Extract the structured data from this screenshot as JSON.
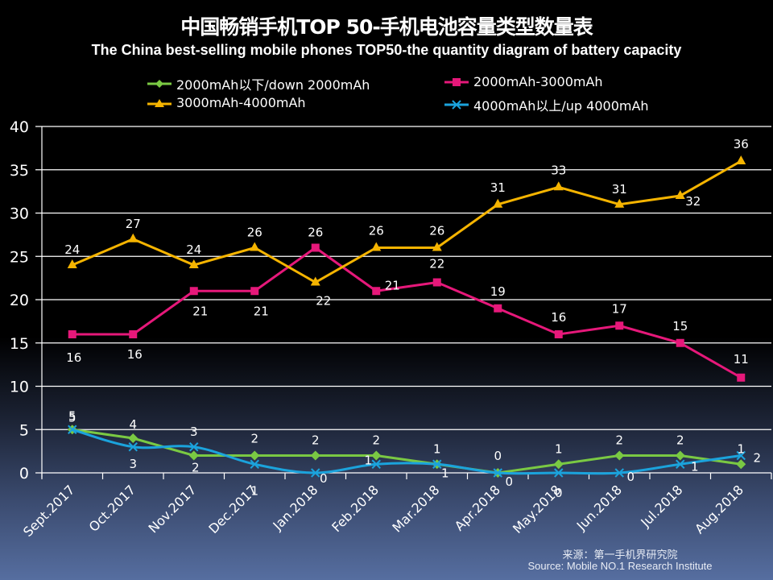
{
  "chart_data": {
    "type": "line",
    "title": "中国畅销手机TOP 50-手机电池容量类型数量表",
    "subtitle": "The China best-selling mobile phones TOP50-the quantity diagram of battery capacity",
    "xlabel": "",
    "ylabel": "",
    "ylim": [
      0,
      40
    ],
    "yticks": [
      0,
      5,
      10,
      15,
      20,
      25,
      30,
      35,
      40
    ],
    "grid": true,
    "legend_position": "top-center",
    "categories": [
      "Sept.2017",
      "Oct.2017",
      "Nov.2017",
      "Dec.2017",
      "Jan.2018",
      "Feb.2018",
      "Mar.2018",
      "Apr.2018",
      "May.2018",
      "Jun.2018",
      "Jul.2018",
      "Aug.2018"
    ],
    "series": [
      {
        "name": "2000mAh以下/down 2000mAh",
        "color": "#7ac943",
        "marker": "diamond",
        "values": [
          5,
          4,
          2,
          2,
          2,
          2,
          1,
          0,
          1,
          2,
          2,
          1
        ]
      },
      {
        "name": "2000mAh-3000mAh",
        "color": "#e6187a",
        "marker": "square",
        "values": [
          16,
          16,
          21,
          21,
          26,
          21,
          22,
          19,
          16,
          17,
          15,
          11
        ]
      },
      {
        "name": "3000mAh-4000mAh",
        "color": "#f5b400",
        "marker": "triangle",
        "values": [
          24,
          27,
          24,
          26,
          22,
          26,
          26,
          31,
          33,
          31,
          32,
          36
        ]
      },
      {
        "name": "4000mAh以上/up 4000mAh",
        "color": "#1ba3dc",
        "marker": "x",
        "values": [
          5,
          3,
          3,
          1,
          0,
          1,
          1,
          0,
          0,
          0,
          1,
          2
        ]
      }
    ],
    "source_cn": "来源：第一手机界研究院",
    "source_en": "Source: Mobile NO.1 Research Institute"
  }
}
